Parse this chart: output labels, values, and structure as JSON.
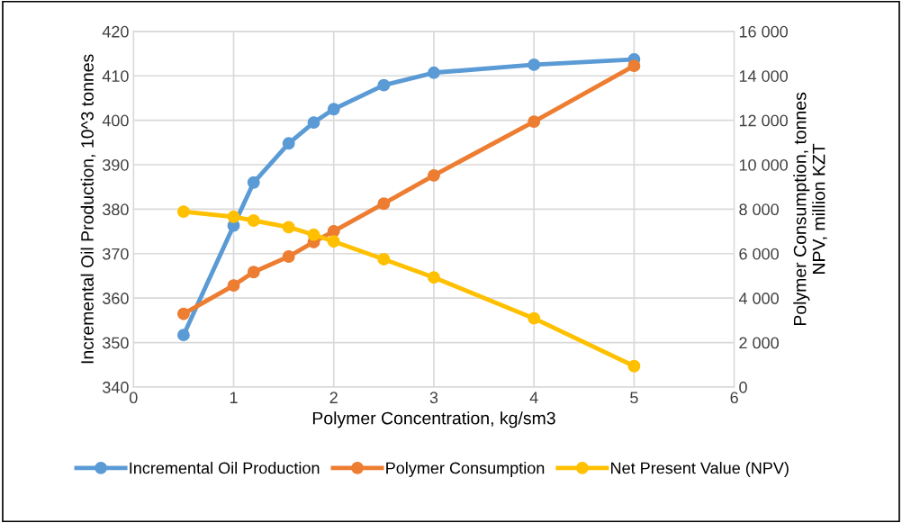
{
  "chart_data": {
    "type": "line",
    "xlabel": "Polymer Concentration, kg/sm3",
    "ylabel": "Incremental Oil Production, 10^3 tonnes",
    "y2label": "Polymer Consumption, tonnes\nNPV, million KZT",
    "x": [
      0.5,
      1,
      1.2,
      1.55,
      1.8,
      2,
      2.5,
      3,
      4,
      5
    ],
    "series": [
      {
        "name": "Incremental Oil Production",
        "color": "#5b9bd5",
        "values": [
          351.7,
          376.3,
          386.0,
          394.8,
          399.5,
          402.5,
          407.9,
          410.7,
          412.5,
          413.7
        ]
      },
      {
        "name": "Polymer Consumption",
        "color": "#ed7d31",
        "axis": "y2",
        "values": [
          3290,
          4570,
          5170,
          5870,
          6520,
          7010,
          8250,
          9520,
          11940,
          14450
        ]
      },
      {
        "name": "Net Present Value (NPV)",
        "color": "#ffc000",
        "axis": "y2",
        "values": [
          7890,
          7660,
          7490,
          7190,
          6850,
          6550,
          5750,
          4930,
          3090,
          940
        ]
      }
    ],
    "xlim": [
      0,
      6
    ],
    "xticks": [
      0,
      1,
      2,
      3,
      4,
      5,
      6
    ],
    "ylim": [
      340,
      420
    ],
    "yticks": [
      340,
      350,
      360,
      370,
      380,
      390,
      400,
      410,
      420
    ],
    "y2lim": [
      0,
      16000
    ],
    "y2ticks": [
      0,
      {
        "value": 2000,
        "label": "2 000"
      },
      {
        "value": 4000,
        "label": "4 000"
      },
      {
        "value": 6000,
        "label": "6 000"
      },
      {
        "value": 8000,
        "label": "8 000"
      },
      {
        "value": 10000,
        "label": "10 000"
      },
      {
        "value": 12000,
        "label": "12 000"
      },
      {
        "value": 14000,
        "label": "14 000"
      },
      {
        "value": 16000,
        "label": "16 000"
      }
    ],
    "grid": true,
    "legend": "bottom",
    "marker": "circle",
    "line_style": "solid"
  }
}
